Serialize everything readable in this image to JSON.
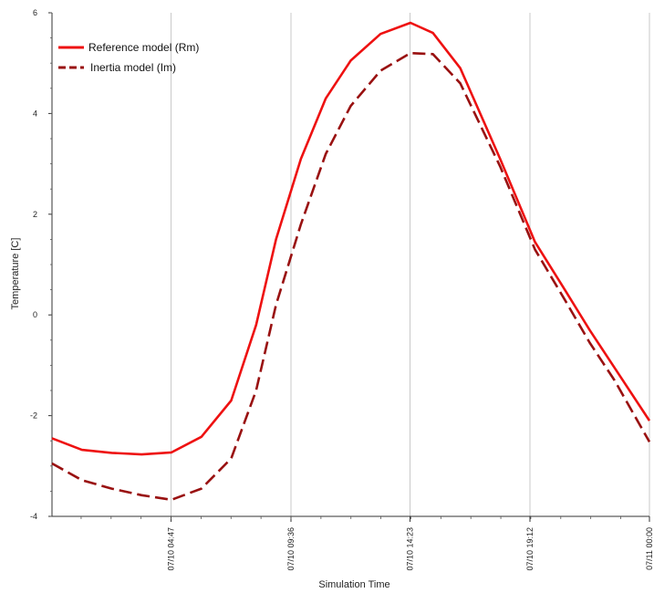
{
  "chart_data": {
    "type": "line",
    "xlabel": "Simulation Time",
    "ylabel": "Temperature [C]",
    "x_ticks": [
      "07/10 04:47",
      "07/10 09:36",
      "07/10 14:23",
      "07/10 19:12",
      "07/11 00:00"
    ],
    "x_tick_hours": [
      4.783,
      9.6,
      14.383,
      19.2,
      24.0
    ],
    "xlim_hours": [
      0.0,
      24.0
    ],
    "ylim": [
      -4,
      6
    ],
    "y_ticks": [
      -4,
      -2,
      0,
      2,
      4,
      6
    ],
    "grid": "vertical",
    "legend_position": "top-left",
    "series": [
      {
        "name": "Reference model  (Rm)",
        "color": "#ee1111",
        "dash": "solid",
        "x_hours": [
          0.0,
          1.2,
          2.4,
          3.6,
          4.8,
          6.0,
          7.2,
          8.2,
          9.0,
          10.0,
          11.0,
          12.0,
          13.2,
          14.4,
          15.3,
          16.4,
          18.0,
          19.4,
          20.6,
          21.6,
          22.6,
          24.0
        ],
        "values": [
          -2.45,
          -2.68,
          -2.74,
          -2.77,
          -2.73,
          -2.42,
          -1.7,
          -0.2,
          1.5,
          3.1,
          4.3,
          5.05,
          5.58,
          5.8,
          5.6,
          4.9,
          3.1,
          1.45,
          0.5,
          -0.3,
          -1.05,
          -2.1
        ]
      },
      {
        "name": "Inertia model  (Im)",
        "color": "#991111",
        "dash": "dashed",
        "x_hours": [
          0.0,
          1.2,
          2.4,
          3.6,
          4.8,
          6.0,
          7.2,
          8.2,
          9.0,
          10.0,
          11.0,
          12.0,
          13.2,
          14.4,
          15.3,
          16.4,
          18.0,
          19.4,
          20.6,
          21.6,
          22.6,
          24.0
        ],
        "values": [
          -2.95,
          -3.28,
          -3.45,
          -3.58,
          -3.67,
          -3.45,
          -2.85,
          -1.5,
          0.2,
          1.8,
          3.2,
          4.15,
          4.85,
          5.2,
          5.18,
          4.6,
          2.95,
          1.3,
          0.3,
          -0.55,
          -1.3,
          -2.52
        ]
      }
    ]
  }
}
